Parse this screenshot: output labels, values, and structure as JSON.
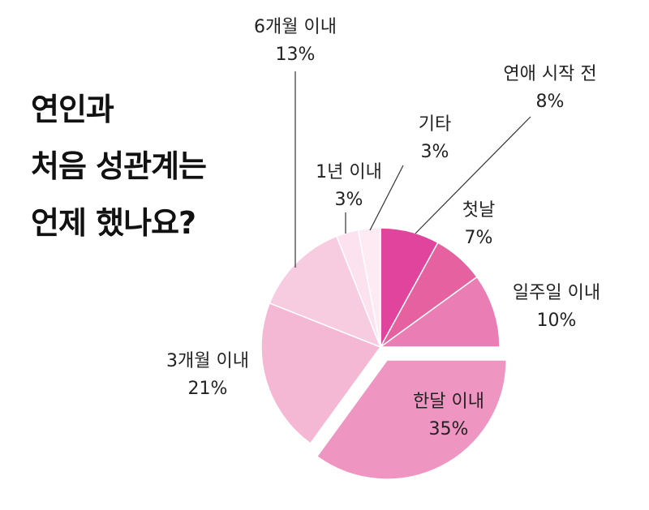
{
  "chart_data": {
    "type": "pie",
    "title_lines": [
      "연인과",
      "처음 성관계는",
      "언제 했나요?"
    ],
    "slices": [
      {
        "label": "연애 시작 전",
        "value": 8,
        "value_label": "8%",
        "color": "#e0449c"
      },
      {
        "label": "첫날",
        "value": 7,
        "value_label": "7%",
        "color": "#e5619f"
      },
      {
        "label": "일주일 이내",
        "value": 10,
        "value_label": "10%",
        "color": "#ea7db3"
      },
      {
        "label": "한달 이내",
        "value": 35,
        "value_label": "35%",
        "color": "#ef95c2",
        "exploded": true
      },
      {
        "label": "3개월 이내",
        "value": 21,
        "value_label": "21%",
        "color": "#f4b7d4"
      },
      {
        "label": "6개월 이내",
        "value": 13,
        "value_label": "13%",
        "color": "#f7cce1"
      },
      {
        "label": "1년 이내",
        "value": 3,
        "value_label": "3%",
        "color": "#fbe2ee"
      },
      {
        "label": "기타",
        "value": 3,
        "value_label": "3%",
        "color": "#fdeaf2"
      }
    ]
  }
}
